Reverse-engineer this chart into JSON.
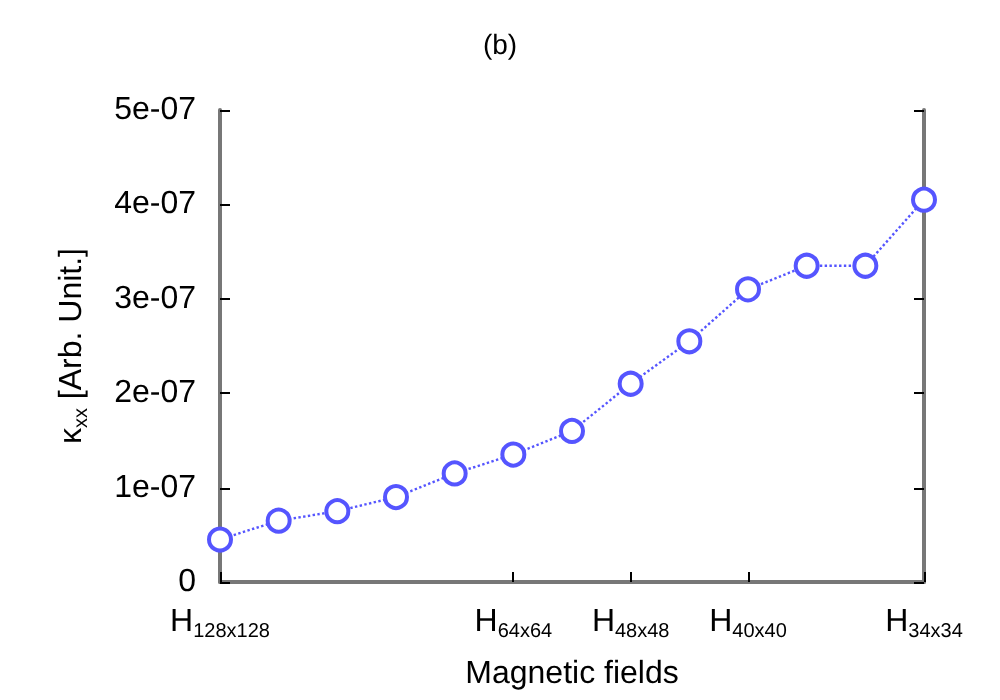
{
  "chart_data": {
    "type": "line",
    "title": "(b)",
    "xlabel": "Magnetic fields",
    "ylabel": "κ$_{xx}$ [Arb. Unit.]",
    "categories": [
      "H$_{128x128}$",
      null,
      null,
      null,
      null,
      "H$_{64x64}$",
      null,
      "H$_{48x48}$",
      null,
      "H$_{40x40}$",
      null,
      null,
      "H$_{34x34}$"
    ],
    "series": [
      {
        "color": "#5555ff",
        "values": [
          4.5e-08,
          6.5e-08,
          7.5e-08,
          9e-08,
          1.15e-07,
          1.35e-07,
          1.6e-07,
          2.1e-07,
          2.55e-07,
          3.1e-07,
          3.35e-07,
          3.35e-07,
          4.05e-07
        ]
      }
    ],
    "ylim": [
      0,
      5e-07
    ],
    "yticks": [
      0,
      {
        "value": 1e-07,
        "label": "1e-07"
      },
      {
        "value": 2e-07,
        "label": "2e-07"
      },
      {
        "value": 3e-07,
        "label": "3e-07"
      },
      {
        "value": 4e-07,
        "label": "4e-07"
      },
      {
        "value": 5e-07,
        "label": "5e-07"
      }
    ],
    "grid": false,
    "marker": "circle",
    "line_style": "dotted"
  }
}
